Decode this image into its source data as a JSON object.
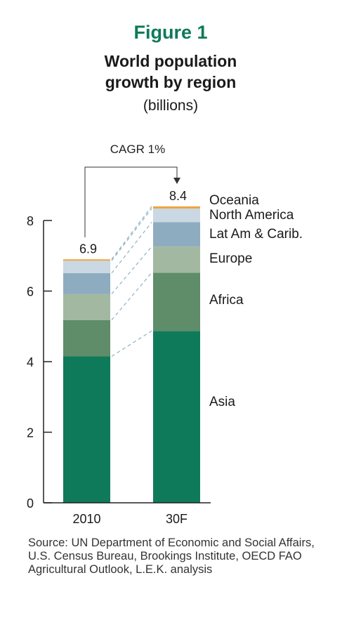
{
  "figure_label": "Figure 1",
  "title_line1": "World population",
  "title_line2": "growth by region",
  "subtitle": "(billions)",
  "cagr_label": "CAGR 1%",
  "source": "Source: UN Department of Economic and Social Affairs, U.S. Census Bureau, Brookings Institute, OECD FAO Agricultural Outlook, L.E.K. analysis",
  "colors": {
    "figure_label": "#0e7a5a",
    "Asia": "#0f7a5a",
    "Africa": "#5f8c69",
    "Europe": "#a3b8a1",
    "Lat Am & Carib.": "#8eacc0",
    "North America": "#c9d8e3",
    "Oceania": "#f0a23c",
    "connector": "#8fb3c4"
  },
  "chart_data": {
    "type": "bar",
    "stacked": true,
    "categories": [
      "2010",
      "30F"
    ],
    "totals": [
      "6.9",
      "8.4"
    ],
    "ylim": [
      0,
      8
    ],
    "yticks": [
      "0",
      "2",
      "4",
      "6",
      "8"
    ],
    "series": [
      {
        "name": "Asia",
        "values": [
          4.15,
          4.87
        ]
      },
      {
        "name": "Africa",
        "values": [
          1.03,
          1.65
        ]
      },
      {
        "name": "Europe",
        "values": [
          0.74,
          0.74
        ]
      },
      {
        "name": "Lat Am & Carib.",
        "values": [
          0.59,
          0.69
        ]
      },
      {
        "name": "North America",
        "values": [
          0.35,
          0.39
        ]
      },
      {
        "name": "Oceania",
        "values": [
          0.04,
          0.06
        ]
      }
    ],
    "legend": [
      "Oceania",
      "North America",
      "Lat Am & Carib.",
      "Europe",
      "Africa",
      "Asia"
    ]
  }
}
